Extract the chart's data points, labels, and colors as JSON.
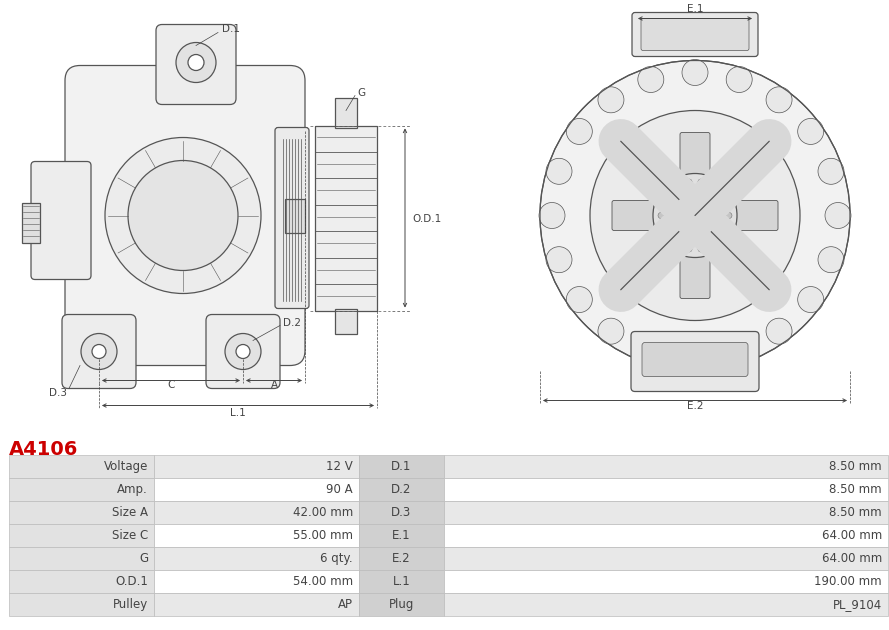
{
  "title": "A4106",
  "title_color": "#cc0000",
  "table_data": {
    "left_labels": [
      "Voltage",
      "Amp.",
      "Size A",
      "Size C",
      "G",
      "O.D.1",
      "Pulley"
    ],
    "left_values": [
      "12 V",
      "90 A",
      "42.00 mm",
      "55.00 mm",
      "6 qty.",
      "54.00 mm",
      "AP"
    ],
    "right_labels": [
      "D.1",
      "D.2",
      "D.3",
      "E.1",
      "E.2",
      "L.1",
      "Plug"
    ],
    "right_values": [
      "8.50 mm",
      "8.50 mm",
      "8.50 mm",
      "64.00 mm",
      "64.00 mm",
      "190.00 mm",
      "PL_9104"
    ]
  },
  "row_colors": [
    "#e8e8e8",
    "#ffffff"
  ],
  "border_color": "#bbbbbb",
  "text_color": "#444444",
  "bg_color": "#ffffff",
  "line_color": "#555555",
  "label_color": "#444444"
}
